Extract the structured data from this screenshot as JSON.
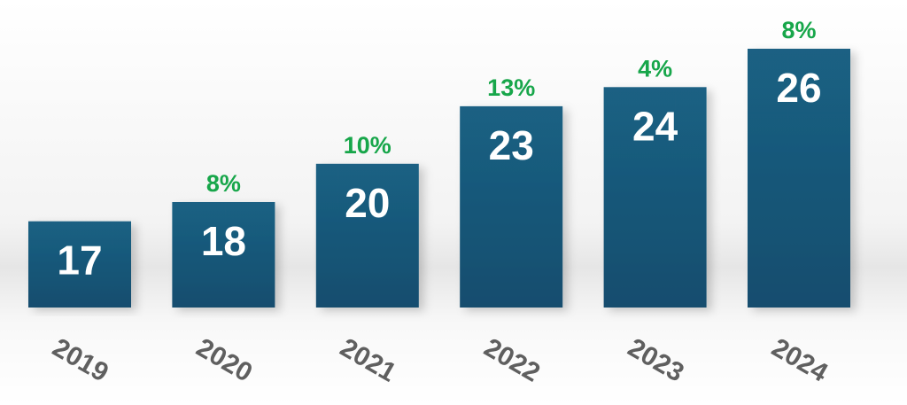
{
  "chart_data": {
    "type": "bar",
    "categories": [
      "2019",
      "2020",
      "2021",
      "2022",
      "2023",
      "2024"
    ],
    "values": [
      17,
      18,
      20,
      23,
      24,
      26
    ],
    "change_labels": [
      "",
      "8%",
      "10%",
      "13%",
      "4%",
      "8%"
    ],
    "title": "",
    "xlabel": "",
    "ylabel": "",
    "ylim": [
      0,
      26
    ],
    "grid": false,
    "legend": "none",
    "colors": {
      "bar_top": "#1a6183",
      "bar_bottom": "#174d6e",
      "value_label": "#ffffff",
      "change_label": "#17a64a",
      "tick_label": "#5f5f5f"
    }
  }
}
